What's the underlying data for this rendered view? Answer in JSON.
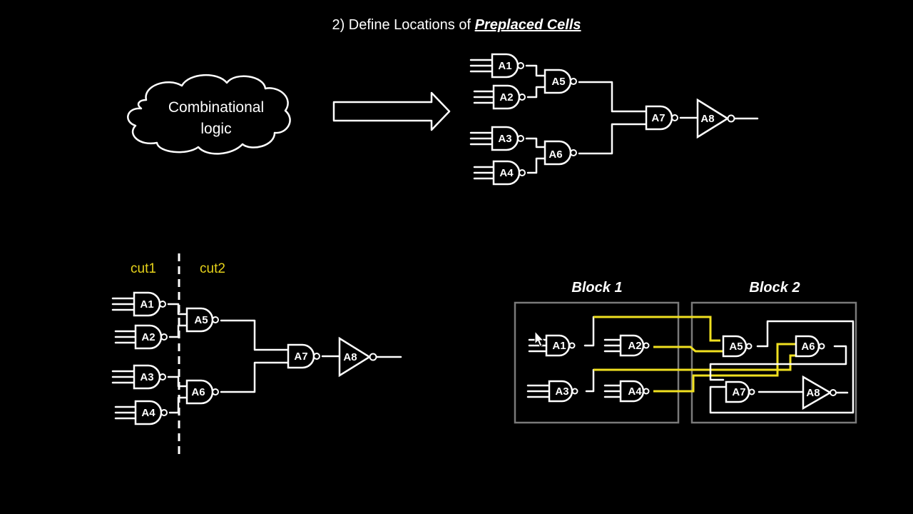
{
  "title": {
    "prefix": "2) Define Locations of ",
    "emphasis": "Preplaced Cells"
  },
  "cloud": {
    "line1": "Combinational",
    "line2": "logic"
  },
  "gates": {
    "a1": "A1",
    "a2": "A2",
    "a3": "A3",
    "a4": "A4",
    "a5": "A5",
    "a6": "A6",
    "a7": "A7",
    "a8": "A8"
  },
  "cuts": {
    "cut1": "cut1",
    "cut2": "cut2"
  },
  "blocks": {
    "block1": "Block 1",
    "block2": "Block 2"
  },
  "colors": {
    "background": "#000000",
    "wire": "#ffffff",
    "cut_label": "#e6d21a",
    "highlight_wire": "#f0e020",
    "block_border": "#7a7a7a"
  }
}
